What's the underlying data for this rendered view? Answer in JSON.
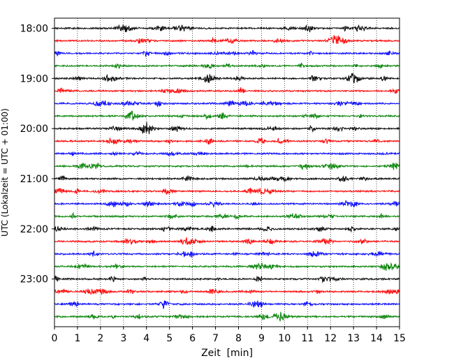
{
  "chart_data": {
    "type": "line",
    "title": "",
    "xlabel": "Zeit  [min]",
    "ylabel": "UTC (Lokalzeit = UTC + 01:00)",
    "xlim": [
      0,
      15
    ],
    "x_ticks": [
      0,
      1,
      2,
      3,
      4,
      5,
      6,
      7,
      8,
      9,
      10,
      11,
      12,
      13,
      14,
      15
    ],
    "x_grid": true,
    "y_tick_labels": [
      "18:00",
      "19:00",
      "20:00",
      "21:00",
      "22:00",
      "23:00"
    ],
    "trace_interval_min": 15,
    "start_time": "18:00",
    "trace_count": 24,
    "trace_color_cycle": [
      "#000000",
      "#ff0000",
      "#0000ff",
      "#008000"
    ]
  }
}
